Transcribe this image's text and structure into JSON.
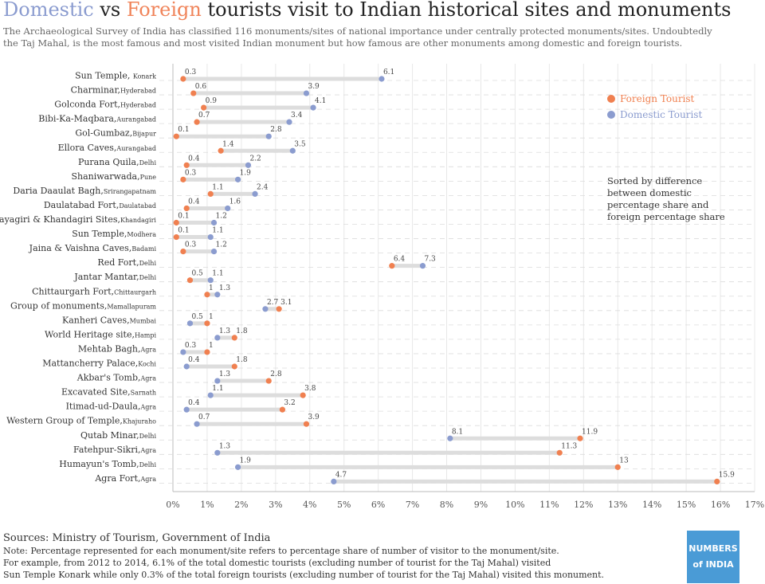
{
  "title": {
    "part1": "Domestic",
    "part2": " vs ",
    "part3": "Foreign",
    "part4": " tourists visit to Indian historical sites and monuments"
  },
  "subtitle": "The Archaeological Survey of India has classified 116 monuments/sites of national importance under centrally protected monuments/sites. Undoubtedly the Taj Mahal, is the most famous and most visited Indian monument but how famous are other monuments among domestic and foreign tourists.",
  "legend": {
    "foreign": "Foreign Tourist",
    "domestic": "Domestic Tourist"
  },
  "sort_note": "Sorted by difference between domestic percentage share and foreign percentage  share",
  "footer": {
    "sources": "Sources: Ministry of Tourism, Government of India",
    "note1": "Note: Percentage represented for each monument/site refers to percentage share of number of visitor to the monument/site.",
    "note2": "For example, from 2012 to 2014, 6.1% of the total domestic tourists (excluding number of tourist for the Taj Mahal) visited",
    "note3": "Sun Temple Konark while only 0.3% of the total foreign tourists (excluding number of tourist for the Taj Mahal) visited this monument."
  },
  "logo": {
    "line1": "NUMBERS",
    "line2": "of INDIA"
  },
  "colors": {
    "domestic": "#8b9ccf",
    "foreign": "#f08050",
    "bar": "#dddddd",
    "title_domestic": "#8a9bcf",
    "title_foreign": "#f0845a"
  },
  "chart_data": {
    "type": "dumbbell",
    "xlim": [
      0,
      17
    ],
    "xticks": [
      "0%",
      "1%",
      "2%",
      "3%",
      "4%",
      "5%",
      "6%",
      "7%",
      "8%",
      "9%",
      "10%",
      "11%",
      "12%",
      "13%",
      "14%",
      "15%",
      "16%",
      "17%"
    ],
    "grid": true,
    "rows": [
      {
        "name": "Sun Temple",
        "city": "Konark",
        "foreign": 0.3,
        "domestic": 6.1
      },
      {
        "name": "Charminar,",
        "city": "Hyderabad",
        "foreign": 0.6,
        "domestic": 3.9
      },
      {
        "name": "Golconda Fort,",
        "city": "Hyderabad",
        "foreign": 0.9,
        "domestic": 4.1
      },
      {
        "name": "Bibi-Ka-Maqbara,",
        "city": "Aurangabad",
        "foreign": 0.7,
        "domestic": 3.4
      },
      {
        "name": "Gol-Gumbaz,",
        "city": "Bijapur",
        "foreign": 0.1,
        "domestic": 2.8
      },
      {
        "name": "Ellora Caves,",
        "city": "Aurangabad",
        "foreign": 1.4,
        "domestic": 3.5
      },
      {
        "name": "Purana Quila,",
        "city": "Delhi",
        "foreign": 0.4,
        "domestic": 2.2
      },
      {
        "name": "Shaniwarwada,",
        "city": "Pune",
        "foreign": 0.3,
        "domestic": 1.9
      },
      {
        "name": "Daria Daaulat Bagh,",
        "city": "Srirangapatnam",
        "foreign": 1.1,
        "domestic": 2.4
      },
      {
        "name": "Daulatabad Fort,",
        "city": "Daulatabad",
        "foreign": 0.4,
        "domestic": 1.6
      },
      {
        "name": "Udayagiri & Khandagiri Sites,",
        "city": "Khandagiri",
        "foreign": 0.1,
        "domestic": 1.2
      },
      {
        "name": "Sun Temple,",
        "city": "Modhera",
        "foreign": 0.1,
        "domestic": 1.1
      },
      {
        "name": "Jaina & Vaishna Caves,",
        "city": "Badami",
        "foreign": 0.3,
        "domestic": 1.2
      },
      {
        "name": "Red Fort,",
        "city": "Delhi",
        "foreign": 6.4,
        "domestic": 7.3
      },
      {
        "name": "Jantar Mantar,",
        "city": "Delhi",
        "foreign": 0.5,
        "domestic": 1.1
      },
      {
        "name": "Chittaurgarh Fort,",
        "city": "Chittaurgarh",
        "foreign": 1,
        "domestic": 1.3
      },
      {
        "name": "Group of monuments,",
        "city": "Mamallapuram",
        "foreign": 3.1,
        "domestic": 2.7
      },
      {
        "name": "Kanheri Caves,",
        "city": "Mumbai",
        "foreign": 1,
        "domestic": 0.5
      },
      {
        "name": "World Heritage site,",
        "city": "Hampi",
        "foreign": 1.8,
        "domestic": 1.3
      },
      {
        "name": "Mehtab Bagh,",
        "city": "Agra",
        "foreign": 1,
        "domestic": 0.3
      },
      {
        "name": "Mattancherry Palace,",
        "city": "Kochi",
        "foreign": 1.8,
        "domestic": 0.4
      },
      {
        "name": "Akbar's Tomb,",
        "city": "Agra",
        "foreign": 2.8,
        "domestic": 1.3
      },
      {
        "name": "Excavated Site,",
        "city": "Sarnath",
        "foreign": 3.8,
        "domestic": 1.1
      },
      {
        "name": "Itimad-ud-Daula,",
        "city": "Agra",
        "foreign": 3.2,
        "domestic": 0.4
      },
      {
        "name": "Western Group of Temple,",
        "city": "Khajuraho",
        "foreign": 3.9,
        "domestic": 0.7
      },
      {
        "name": "Qutab Minar,",
        "city": "Delhi",
        "foreign": 11.9,
        "domestic": 8.1
      },
      {
        "name": "Fatehpur-Sikri,",
        "city": "Agra",
        "foreign": 11.3,
        "domestic": 1.3
      },
      {
        "name": "Humayun's Tomb,",
        "city": "Delhi",
        "foreign": 13,
        "domestic": 1.9
      },
      {
        "name": "Agra Fort,",
        "city": "Agra",
        "foreign": 15.9,
        "domestic": 4.7
      }
    ]
  }
}
